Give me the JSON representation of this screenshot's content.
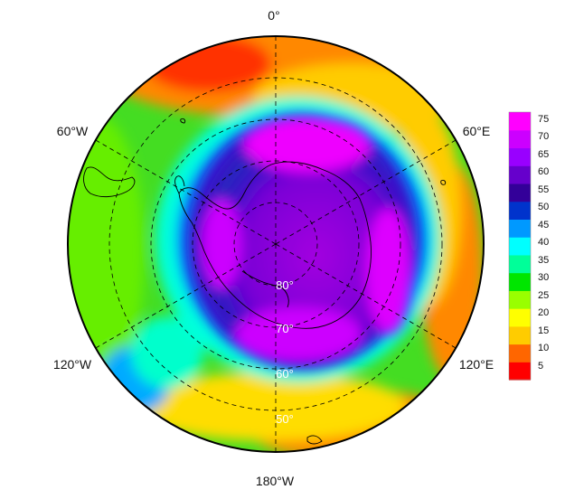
{
  "map": {
    "projection": "south-polar-stereographic",
    "longitude_labels": [
      {
        "id": "lon-0",
        "text": "0°"
      },
      {
        "id": "lon-60w",
        "text": "60°W"
      },
      {
        "id": "lon-60e",
        "text": "60°E"
      },
      {
        "id": "lon-120w",
        "text": "120°W"
      },
      {
        "id": "lon-120e",
        "text": "120°E"
      },
      {
        "id": "lon-180w",
        "text": "180°W"
      }
    ],
    "latitude_labels": [
      {
        "id": "lat-80",
        "text": "80°",
        "lat": 80
      },
      {
        "id": "lat-70",
        "text": "70°",
        "lat": 70
      },
      {
        "id": "lat-60",
        "text": "60°",
        "lat": 60
      },
      {
        "id": "lat-50",
        "text": "50°",
        "lat": 50
      }
    ],
    "graticule_latitudes": [
      80,
      70,
      60,
      50
    ],
    "graticule_longitudes": [
      0,
      60,
      120,
      180,
      240,
      300
    ],
    "outer_latitude": 40,
    "continent": "Antarctica"
  },
  "colorbar": {
    "ticks": [
      "75",
      "70",
      "65",
      "60",
      "55",
      "50",
      "45",
      "40",
      "35",
      "30",
      "25",
      "20",
      "15",
      "10",
      "5"
    ],
    "min": 1,
    "max": 77,
    "colors": [
      "#ff0000",
      "#ff6600",
      "#ffcc00",
      "#ffff00",
      "#99ff00",
      "#00e600",
      "#00ff99",
      "#00ffff",
      "#0099ff",
      "#0033cc",
      "#330099",
      "#6600cc",
      "#9900ff",
      "#cc00ff",
      "#ff00ff"
    ]
  }
}
